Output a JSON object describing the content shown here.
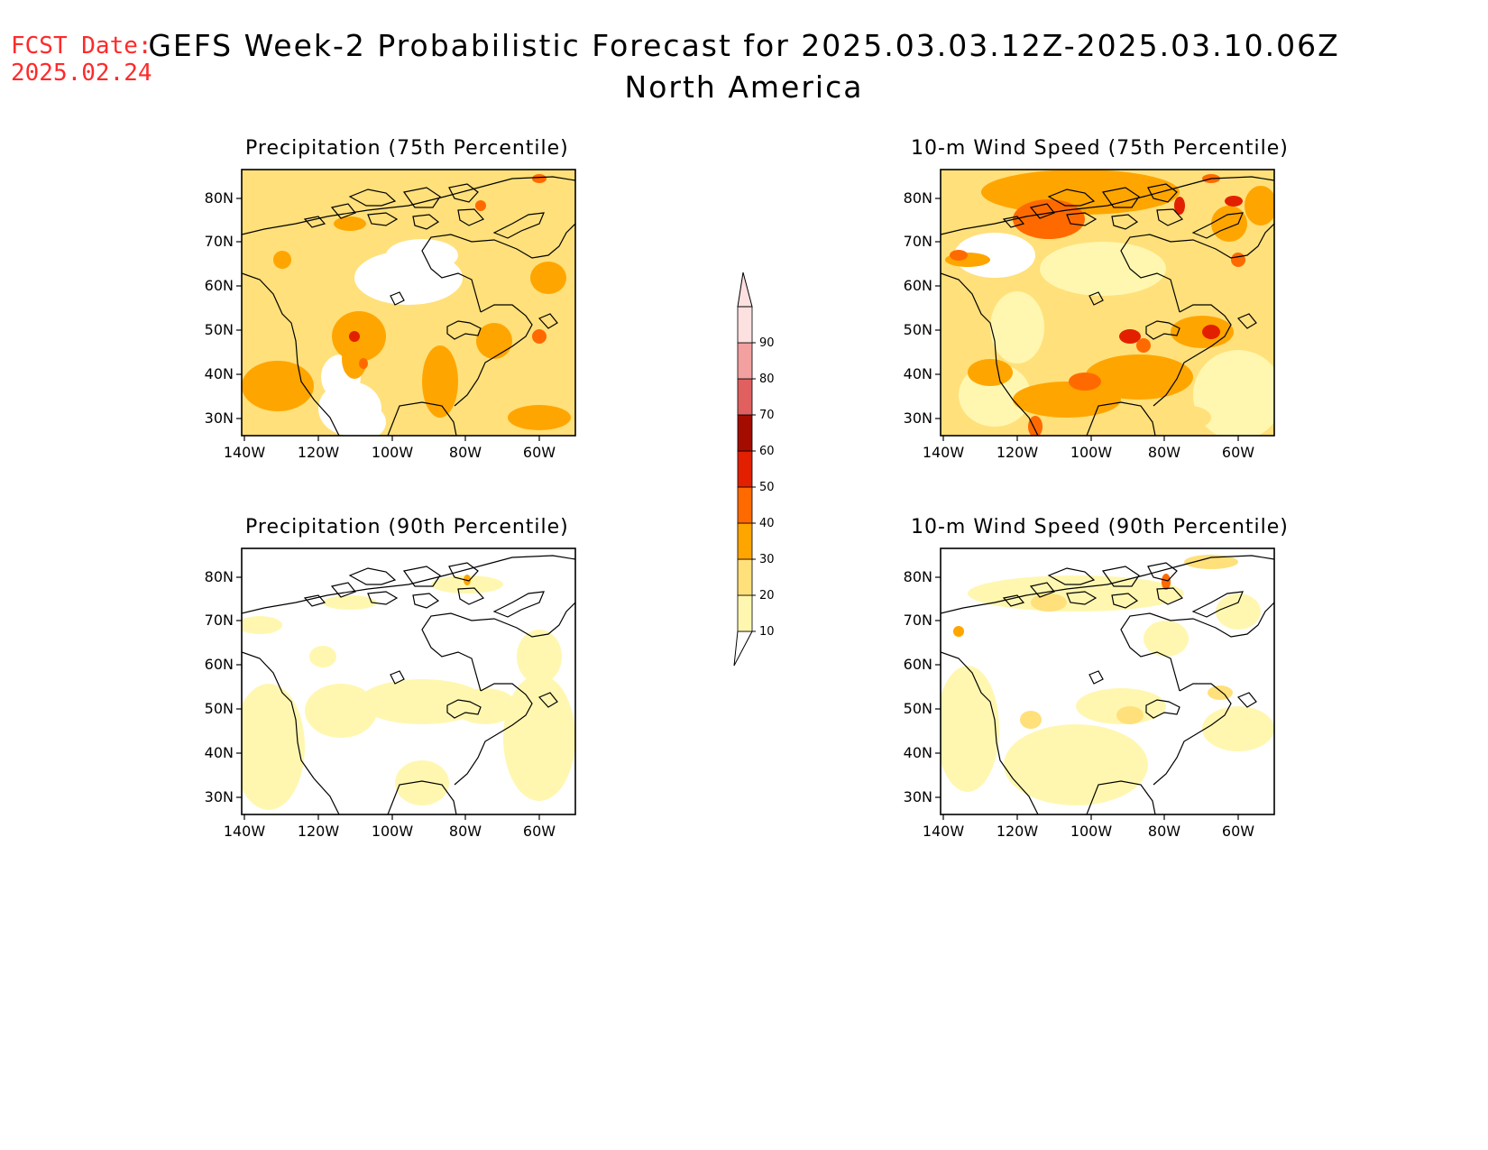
{
  "header": {
    "fcst_label": "FCST Date:",
    "fcst_date": "2025.02.24",
    "title_line1": "GEFS Week-2 Probabilistic Forecast for 2025.03.03.12Z-2025.03.10.06Z",
    "title_line2": "North America"
  },
  "panels": [
    {
      "title": "Precipitation (75th Percentile)"
    },
    {
      "title": "10-m Wind Speed (75th Percentile)"
    },
    {
      "title": "Precipitation (90th Percentile)"
    },
    {
      "title": "10-m Wind Speed (90th Percentile)"
    }
  ],
  "axes": {
    "lat_labels": [
      "80N",
      "70N",
      "60N",
      "50N",
      "40N",
      "30N"
    ],
    "lon_labels": [
      "140W",
      "120W",
      "100W",
      "80W",
      "60W"
    ]
  },
  "colorbar": {
    "levels": [
      "10",
      "20",
      "30",
      "40",
      "50",
      "60",
      "70",
      "80",
      "90"
    ],
    "colors": [
      "#fff7b0",
      "#ffe07a",
      "#ffa500",
      "#ff6a00",
      "#e22000",
      "#a50c00",
      "#e06060",
      "#f2a0a0",
      "#fde0e0"
    ]
  }
}
